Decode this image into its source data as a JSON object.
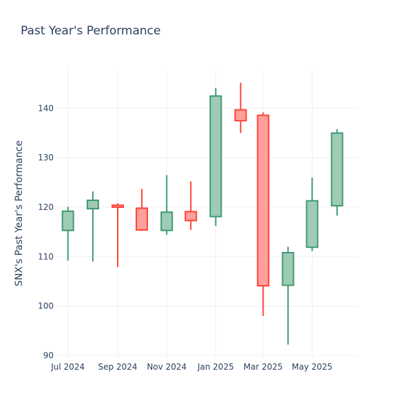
{
  "chart_data": {
    "type": "candlestick",
    "title": "Past Year's Performance",
    "xlabel": "",
    "ylabel": "SNX's Past Year's Performance",
    "ylim": [
      89.5,
      148
    ],
    "yticks": [
      90,
      100,
      110,
      120,
      130,
      140
    ],
    "xlim": [
      "2024-06-15",
      "2025-06-27"
    ],
    "xticks": [
      {
        "date": "2024-07-01",
        "label": "Jul 2024"
      },
      {
        "date": "2024-09-01",
        "label": "Sep 2024"
      },
      {
        "date": "2024-11-01",
        "label": "Nov 2024"
      },
      {
        "date": "2025-01-01",
        "label": "Jan 2025"
      },
      {
        "date": "2025-03-01",
        "label": "Mar 2025"
      },
      {
        "date": "2025-05-01",
        "label": "May 2025"
      }
    ],
    "grid": true,
    "colors": {
      "increasing_line": "#3d9970",
      "increasing_fill": "#9ecbb5",
      "decreasing_line": "#ff4136",
      "decreasing_fill": "#ffa09b",
      "grid": "#eef0f4",
      "text": "#2a3f5f"
    },
    "candles": [
      {
        "date": "2024-07-01",
        "open": 115.3,
        "high": 120.1,
        "low": 109.2,
        "close": 119.2
      },
      {
        "date": "2024-08-01",
        "open": 119.7,
        "high": 123.2,
        "low": 109.0,
        "close": 121.4
      },
      {
        "date": "2024-09-01",
        "open": 120.4,
        "high": 120.8,
        "low": 107.9,
        "close": 120.0
      },
      {
        "date": "2024-10-01",
        "open": 119.8,
        "high": 123.7,
        "low": 115.2,
        "close": 115.4
      },
      {
        "date": "2024-11-01",
        "open": 115.3,
        "high": 126.5,
        "low": 114.4,
        "close": 119.0
      },
      {
        "date": "2024-12-01",
        "open": 119.1,
        "high": 125.2,
        "low": 115.4,
        "close": 117.3
      },
      {
        "date": "2025-01-01",
        "open": 118.1,
        "high": 144.1,
        "low": 116.2,
        "close": 142.5
      },
      {
        "date": "2025-02-01",
        "open": 139.7,
        "high": 145.2,
        "low": 135.0,
        "close": 137.5
      },
      {
        "date": "2025-03-01",
        "open": 138.6,
        "high": 139.2,
        "low": 98.0,
        "close": 104.1
      },
      {
        "date": "2025-04-01",
        "open": 104.2,
        "high": 112.0,
        "low": 92.2,
        "close": 110.8
      },
      {
        "date": "2025-05-01",
        "open": 111.9,
        "high": 126.0,
        "low": 111.1,
        "close": 121.3
      },
      {
        "date": "2025-06-01",
        "open": 120.3,
        "high": 135.8,
        "low": 118.3,
        "close": 135.0
      }
    ]
  }
}
